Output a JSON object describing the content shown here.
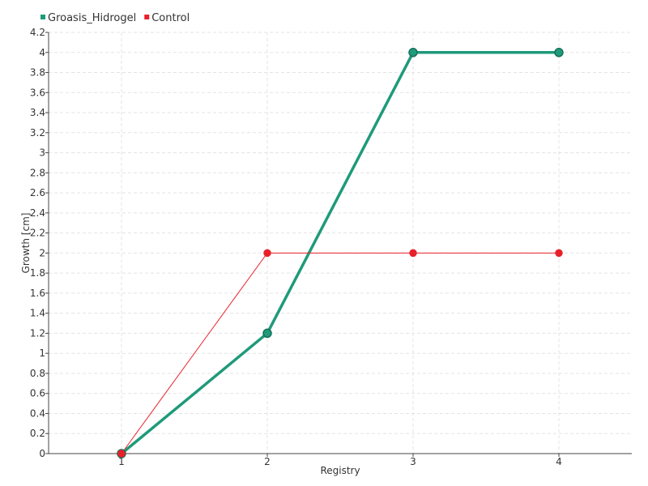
{
  "chart_data": {
    "type": "line",
    "title": "",
    "xlabel": "Registry",
    "ylabel": "Growth [cm]",
    "categories": [
      "1",
      "2",
      "3",
      "4"
    ],
    "ylim": [
      0,
      4.2
    ],
    "yticks": [
      0,
      0.2,
      0.4,
      0.6,
      0.8,
      1,
      1.2,
      1.4,
      1.6,
      1.8,
      2,
      2.2,
      2.4,
      2.6,
      2.8,
      3,
      3.2,
      3.4,
      3.6,
      3.8,
      4,
      4.2
    ],
    "ytick_labels": [
      "0",
      "0.2",
      "0.4",
      "0.6",
      "0.8",
      "1",
      "1.2",
      "1.4",
      "1.6",
      "1.8",
      "2",
      "2.2",
      "2.4",
      "2.6",
      "2.8",
      "3",
      "3.2",
      "3.4",
      "3.6",
      "3.8",
      "4",
      "4.2"
    ],
    "grid": true,
    "legend_position": "top-left",
    "series": [
      {
        "name": "Groasis_Hidrogel",
        "values": [
          0,
          1.2,
          4,
          4
        ],
        "color": "#1f9a7a"
      },
      {
        "name": "Control",
        "values": [
          0,
          2,
          2,
          2
        ],
        "color": "#e8202a"
      }
    ]
  }
}
